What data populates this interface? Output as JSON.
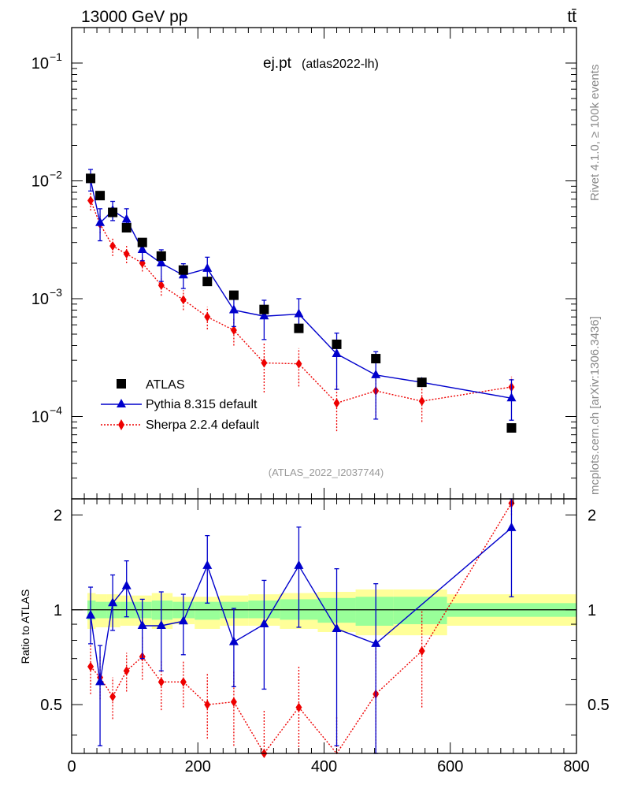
{
  "header": {
    "left": "13000 GeV pp",
    "right": "tt̄"
  },
  "side_labels": {
    "top": "Rivet 4.1.0, ≥ 100k events",
    "bottom": "mcplots.cern.ch [arXiv:1306.3436]"
  },
  "colors": {
    "atlas": "#000000",
    "pythia": "#0000cc",
    "sherpa": "#ee0000",
    "band_inner": "#99ff99",
    "band_outer": "#ffff99"
  },
  "chart_data": [
    {
      "type": "scatter",
      "title": "ej.pt",
      "subtitle": "(atlas2022-lh)",
      "analysis_label": "(ATLAS_2022_I2037744)",
      "xlabel": "",
      "ylabel": "",
      "yscale": "log",
      "xlim": [
        0,
        800
      ],
      "ylim": [
        2e-05,
        0.2
      ],
      "y_tick_labels": [
        "10^-4",
        "10^-3",
        "10^-2",
        "10^-1"
      ],
      "y_tick_values": [
        0.0001,
        0.001,
        0.01,
        0.1
      ],
      "legend": [
        "ATLAS",
        "Pythia 8.315 default",
        "Sherpa 2.2.4 default"
      ],
      "legend_position": "bottom-left",
      "series": [
        {
          "name": "ATLAS",
          "style": "markers-square",
          "x": [
            30,
            45,
            65,
            87,
            112,
            142,
            177,
            215,
            257,
            305,
            360,
            420,
            482,
            555,
            697
          ],
          "y": [
            0.0105,
            0.0075,
            0.0054,
            0.004,
            0.003,
            0.0023,
            0.00175,
            0.0014,
            0.00107,
            0.00081,
            0.00056,
            0.00041,
            0.00031,
            0.000195,
            8e-05
          ]
        },
        {
          "name": "Pythia 8.315 default",
          "style": "line-triangle",
          "x": [
            30,
            45,
            65,
            87,
            112,
            142,
            177,
            215,
            257,
            305,
            360,
            420,
            482,
            555,
            697
          ],
          "y": [
            0.0102,
            0.0044,
            0.0056,
            0.0047,
            0.0026,
            0.002,
            0.00158,
            0.0018,
            0.0008,
            0.00071,
            0.00074,
            0.00034,
            0.000225,
            0.000195,
            0.000143
          ],
          "err_lo": [
            0.0082,
            0.0031,
            0.0046,
            0.0037,
            0.0021,
            0.0014,
            0.00122,
            0.00138,
            0.00058,
            0.00045,
            0.00052,
            0.00017,
            9.5e-05,
            0.000195,
            9.3e-05
          ],
          "err_hi": [
            0.0125,
            0.0058,
            0.0067,
            0.0058,
            0.0032,
            0.0026,
            0.00198,
            0.00225,
            0.001,
            0.00097,
            0.001,
            0.00051,
            0.000355,
            0.000195,
            0.000205
          ]
        },
        {
          "name": "Sherpa 2.2.4 default",
          "style": "dotted-diamond",
          "x": [
            30,
            45,
            65,
            87,
            112,
            142,
            177,
            215,
            257,
            305,
            360,
            420,
            482,
            555,
            697
          ],
          "y": [
            0.0068,
            0.0043,
            0.0028,
            0.0024,
            0.002,
            0.0013,
            0.00098,
            0.0007,
            0.00054,
            0.000285,
            0.00028,
            0.00013,
            0.000165,
            0.000135,
            0.000178
          ],
          "err_lo": [
            0.0056,
            0.0036,
            0.0023,
            0.002,
            0.0017,
            0.00106,
            0.0008,
            0.00055,
            0.0004,
            0.00016,
            0.00018,
            7.5e-05,
            9.5e-05,
            9e-05,
            0.00014
          ],
          "err_hi": [
            0.008,
            0.0052,
            0.0033,
            0.0028,
            0.0023,
            0.00155,
            0.00118,
            0.00085,
            0.00068,
            0.00042,
            0.00038,
            0.000185,
            0.00024,
            0.000185,
            0.000218
          ]
        }
      ]
    },
    {
      "type": "scatter",
      "title": "",
      "xlabel": "",
      "ylabel": "Ratio to ATLAS",
      "xlim": [
        0,
        800
      ],
      "ylim": [
        0.35,
        2.25
      ],
      "x_tick_labels": [
        "0",
        "200",
        "400",
        "600",
        "800"
      ],
      "x_tick_values": [
        0,
        200,
        400,
        600,
        800
      ],
      "y_tick_labels": [
        "0.5",
        "1",
        "2"
      ],
      "y_tick_values": [
        0.5,
        1,
        2
      ],
      "reference_line": 1,
      "bands": [
        {
          "x0": 25,
          "x1": 38,
          "inner": [
            0.93,
            1.07
          ],
          "outer": [
            0.87,
            1.13
          ]
        },
        {
          "x0": 38,
          "x1": 55,
          "inner": [
            0.94,
            1.06
          ],
          "outer": [
            0.88,
            1.12
          ]
        },
        {
          "x0": 55,
          "x1": 77,
          "inner": [
            0.94,
            1.06
          ],
          "outer": [
            0.88,
            1.12
          ]
        },
        {
          "x0": 77,
          "x1": 100,
          "inner": [
            0.94,
            1.06
          ],
          "outer": [
            0.89,
            1.11
          ]
        },
        {
          "x0": 100,
          "x1": 127,
          "inner": [
            0.94,
            1.06
          ],
          "outer": [
            0.89,
            1.11
          ]
        },
        {
          "x0": 127,
          "x1": 160,
          "inner": [
            0.93,
            1.07
          ],
          "outer": [
            0.87,
            1.13
          ]
        },
        {
          "x0": 160,
          "x1": 195,
          "inner": [
            0.94,
            1.06
          ],
          "outer": [
            0.9,
            1.1
          ]
        },
        {
          "x0": 195,
          "x1": 235,
          "inner": [
            0.93,
            1.06
          ],
          "outer": [
            0.87,
            1.1
          ]
        },
        {
          "x0": 235,
          "x1": 280,
          "inner": [
            0.94,
            1.06
          ],
          "outer": [
            0.89,
            1.11
          ]
        },
        {
          "x0": 280,
          "x1": 330,
          "inner": [
            0.94,
            1.07
          ],
          "outer": [
            0.89,
            1.12
          ]
        },
        {
          "x0": 330,
          "x1": 390,
          "inner": [
            0.93,
            1.08
          ],
          "outer": [
            0.87,
            1.13
          ]
        },
        {
          "x0": 390,
          "x1": 450,
          "inner": [
            0.91,
            1.09
          ],
          "outer": [
            0.85,
            1.14
          ]
        },
        {
          "x0": 450,
          "x1": 510,
          "inner": [
            0.89,
            1.1
          ],
          "outer": [
            0.83,
            1.16
          ]
        },
        {
          "x0": 510,
          "x1": 595,
          "inner": [
            0.9,
            1.1
          ],
          "outer": [
            0.83,
            1.16
          ]
        },
        {
          "x0": 595,
          "x1": 800,
          "inner": [
            0.95,
            1.05
          ],
          "outer": [
            0.89,
            1.12
          ]
        }
      ],
      "series": [
        {
          "name": "Pythia 8.315 default",
          "style": "line-triangle",
          "x": [
            30,
            45,
            65,
            87,
            112,
            142,
            177,
            215,
            257,
            305,
            360,
            420,
            482,
            697
          ],
          "y": [
            0.96,
            0.59,
            1.05,
            1.19,
            0.89,
            0.89,
            0.92,
            1.38,
            0.79,
            0.9,
            1.38,
            0.87,
            0.78,
            1.82
          ],
          "err_lo": [
            0.78,
            0.37,
            0.86,
            0.95,
            0.7,
            0.64,
            0.72,
            1.05,
            0.57,
            0.56,
            0.88,
            0.37,
            0.33,
            1.1
          ],
          "err_hi": [
            1.18,
            0.77,
            1.29,
            1.43,
            1.08,
            1.14,
            1.12,
            1.72,
            1.01,
            1.24,
            1.83,
            1.35,
            1.21,
            2.25
          ]
        },
        {
          "name": "Sherpa 2.2.4 default",
          "style": "dotted-diamond",
          "x": [
            30,
            45,
            65,
            87,
            112,
            142,
            177,
            215,
            257,
            305,
            360,
            420,
            482,
            555,
            697
          ],
          "y": [
            0.66,
            0.61,
            0.53,
            0.64,
            0.71,
            0.59,
            0.59,
            0.5,
            0.51,
            0.35,
            0.49,
            0.32,
            0.54,
            0.74,
            2.18
          ],
          "err_lo": [
            0.54,
            0.52,
            0.45,
            0.55,
            0.6,
            0.48,
            0.49,
            0.39,
            0.37,
            0.2,
            0.32,
            0.18,
            0.31,
            0.49,
            2.0
          ],
          "err_hi": [
            0.78,
            0.71,
            0.61,
            0.73,
            0.82,
            0.69,
            0.69,
            0.63,
            0.64,
            0.48,
            0.66,
            0.46,
            0.76,
            0.99,
            2.25
          ]
        }
      ]
    }
  ]
}
